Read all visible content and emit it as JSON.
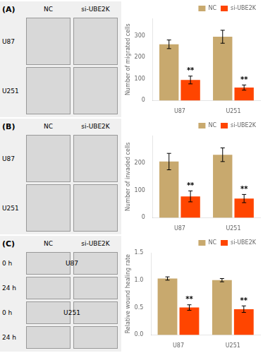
{
  "chart_data": [
    {
      "type": "image",
      "title": "(A)",
      "columns": [
        "NC",
        "si-UBE2K"
      ],
      "rows": [
        "U87",
        "U251"
      ]
    },
    {
      "type": "bar",
      "ylabel": "Number of migrated cells",
      "categories": [
        "U87",
        "U251"
      ],
      "series": [
        {
          "name": "NC",
          "color": "#C8A96E",
          "values": [
            260,
            295
          ],
          "errors": [
            20,
            30
          ]
        },
        {
          "name": "si-UBE2K",
          "color": "#FF4500",
          "values": [
            95,
            60
          ],
          "errors": [
            18,
            12
          ],
          "annotations": [
            "**",
            "**"
          ]
        }
      ],
      "ylim": [
        0,
        380
      ],
      "yticks": [
        0,
        100,
        200,
        300
      ],
      "grid": false,
      "legend": "upper right"
    },
    {
      "type": "image",
      "title": "(B)",
      "columns": [
        "NC",
        "si-UBE2K"
      ],
      "rows": [
        "U87",
        "U251"
      ]
    },
    {
      "type": "bar",
      "ylabel": "Number of invaded cells",
      "categories": [
        "U87",
        "U251"
      ],
      "series": [
        {
          "name": "NC",
          "color": "#C8A96E",
          "values": [
            205,
            230
          ],
          "errors": [
            30,
            25
          ]
        },
        {
          "name": "si-UBE2K",
          "color": "#FF4500",
          "values": [
            78,
            70
          ],
          "errors": [
            20,
            15
          ],
          "annotations": [
            "**",
            "**"
          ]
        }
      ],
      "ylim": [
        0,
        300
      ],
      "yticks": [
        0,
        100,
        200
      ],
      "grid": false,
      "legend": "upper right"
    },
    {
      "type": "image",
      "title": "(C)",
      "columns": [
        "NC",
        "si-UBE2K"
      ],
      "rows": [
        "0 h",
        "24 h",
        "0 h",
        "24 h"
      ],
      "annotations": [
        "U87",
        "U251"
      ]
    },
    {
      "type": "bar",
      "ylabel": "Relative wound healing rate",
      "categories": [
        "U87",
        "U251"
      ],
      "series": [
        {
          "name": "NC",
          "color": "#C8A96E",
          "values": [
            1.03,
            1.0
          ],
          "errors": [
            0.03,
            0.03
          ]
        },
        {
          "name": "si-UBE2K",
          "color": "#FF4500",
          "values": [
            0.5,
            0.47
          ],
          "errors": [
            0.05,
            0.06
          ],
          "annotations": [
            "**",
            "**"
          ]
        }
      ],
      "ylim": [
        0.0,
        1.5
      ],
      "yticks": [
        {
          "value": 0,
          "label": "0.0"
        },
        0.5,
        {
          "value": 1,
          "label": "1.0"
        },
        1.5
      ],
      "grid": false,
      "legend": "upper right"
    }
  ]
}
